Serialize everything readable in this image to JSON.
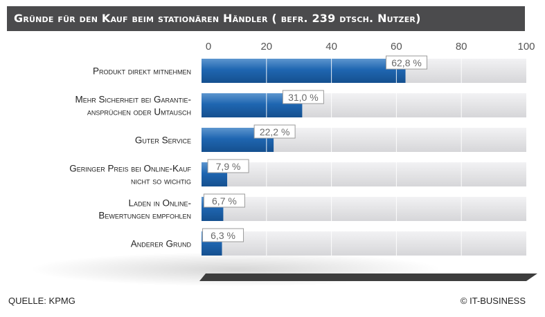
{
  "title": "Gründe für den Kauf beim stationären Händler ( befr. 239 dtsch. Nutzer)",
  "source": "QUELLE: KPMG",
  "copyright": "© IT-BUSINESS",
  "colors": {
    "bar": "#1f66b1",
    "track": "#e4e4e6",
    "title_bg": "#4b4b4d",
    "floor": "#3d3d3d"
  },
  "chart_data": {
    "type": "bar",
    "orientation": "horizontal",
    "title": "Gründe für den Kauf beim stationären Händler ( befr. 239 dtsch. Nutzer)",
    "categories": [
      [
        "Produkt direkt mitnehmen"
      ],
      [
        "Mehr Sicherheit bei Garantie-",
        "ansprüchen oder Umtausch"
      ],
      [
        "Guter Service"
      ],
      [
        "Geringer Preis bei Online-Kauf",
        "nicht so wichtig"
      ],
      [
        "Laden in Online-",
        "Bewertungen empfohlen"
      ],
      [
        "Anderer Grund"
      ]
    ],
    "values": [
      62.8,
      31.0,
      22.2,
      7.9,
      6.7,
      6.3
    ],
    "value_labels": [
      "62,8 %",
      "31,0 %",
      "22,2 %",
      "7,9 %",
      "6,7 %",
      "6,3 %"
    ],
    "ticks": [
      0,
      20,
      40,
      60,
      80,
      100
    ],
    "xlim": [
      0,
      100
    ],
    "tick_position": "top",
    "grid": true,
    "xlabel": "",
    "ylabel": ""
  }
}
